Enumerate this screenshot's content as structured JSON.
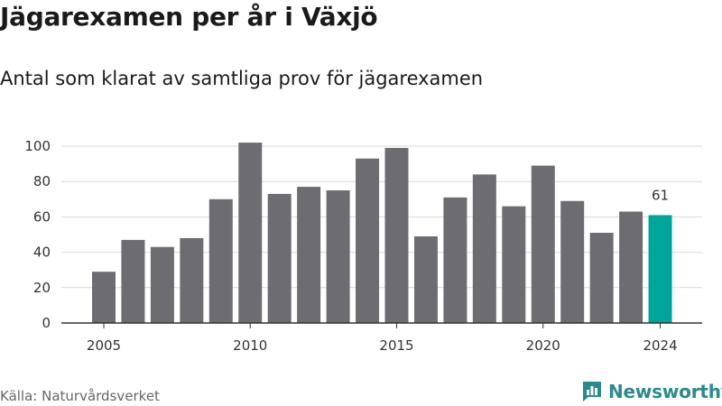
{
  "header": {
    "title": "Jägarexamen per år i Växjö",
    "subtitle": "Antal som klarat av samtliga prov för jägarexamen"
  },
  "footer": {
    "source": "Källa: Naturvårdsverket",
    "brand": "Newsworthy"
  },
  "colors": {
    "bar": "#6d6c71",
    "highlight": "#00a59a",
    "grid": "#d9d9d9",
    "brand": "#2a8a8c"
  },
  "icons": {
    "brand_logo": "newsworthy-logo-icon"
  },
  "chart_data": {
    "type": "bar",
    "title": "Jägarexamen per år i Växjö",
    "subtitle": "Antal som klarat av samtliga prov för jägarexamen",
    "xlabel": "",
    "ylabel": "",
    "x": [
      2005,
      2006,
      2007,
      2008,
      2009,
      2010,
      2011,
      2012,
      2013,
      2014,
      2015,
      2016,
      2017,
      2018,
      2019,
      2020,
      2021,
      2022,
      2023,
      2024
    ],
    "values": [
      29,
      47,
      43,
      48,
      70,
      102,
      73,
      77,
      75,
      93,
      99,
      49,
      71,
      84,
      66,
      89,
      69,
      51,
      63,
      61
    ],
    "ylim": [
      0,
      100
    ],
    "yticks": [
      0,
      20,
      40,
      60,
      80,
      100
    ],
    "xticks": [
      2005,
      2010,
      2015,
      2020,
      2024
    ],
    "highlight_x": 2024,
    "data_labels": [
      {
        "x": 2024,
        "label": "61"
      }
    ],
    "grid": "horizontal",
    "legend": "none"
  }
}
